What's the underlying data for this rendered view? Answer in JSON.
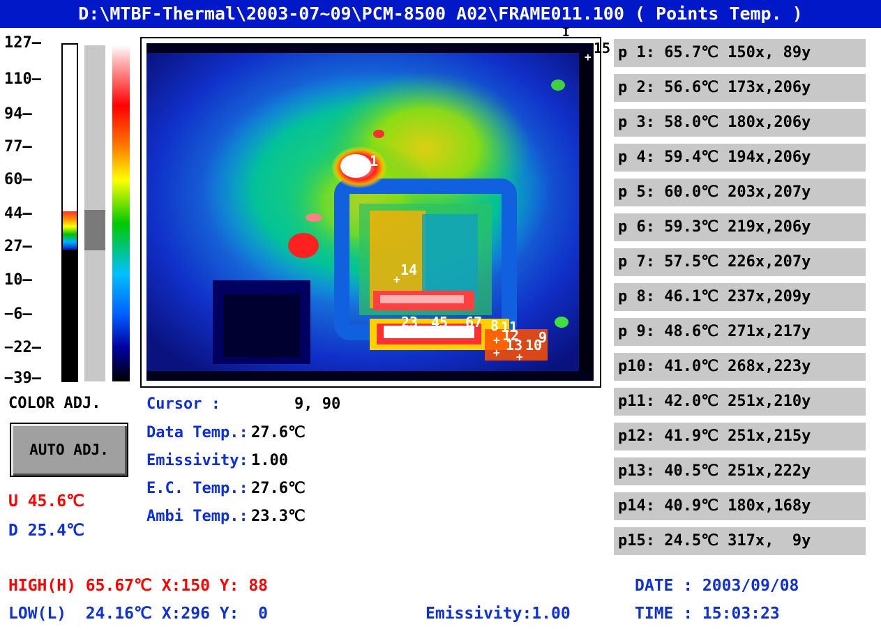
{
  "title": "D:\\MTBF-Thermal\\2003-07~09\\PCM-8500 A02\\FRAME011.100 ( Points Temp. )",
  "scale": [
    "127—",
    "110—",
    "94—",
    "77—",
    "60—",
    "44—",
    "27—",
    "10—",
    "−6—",
    "−22—",
    "−39—"
  ],
  "color_adj_label": "COLOR ADJ.",
  "auto_adj_label": "AUTO ADJ.",
  "upper_limit": "U 45.6℃",
  "lower_limit": "D 25.4℃",
  "info": {
    "cursor_label": "Cursor    :",
    "cursor_value": "9, 90",
    "data_temp_label": "Data Temp.:",
    "data_temp_value": "27.6℃",
    "emissivity_label": "Emissivity:",
    "emissivity_value": "1.00",
    "ec_temp_label": "E.C. Temp.:",
    "ec_temp_value": "27.6℃",
    "ambi_temp_label": "Ambi Temp.:",
    "ambi_temp_value": "23.3℃"
  },
  "points": [
    "p 1: 65.7℃ 150x, 89y",
    "p 2: 56.6℃ 173x,206y",
    "p 3: 58.0℃ 180x,206y",
    "p 4: 59.4℃ 194x,206y",
    "p 5: 60.0℃ 203x,207y",
    "p 6: 59.3℃ 219x,206y",
    "p 7: 57.5℃ 226x,207y",
    "p 8: 46.1℃ 237x,209y",
    "p 9: 48.6℃ 271x,217y",
    "p10: 41.0℃ 268x,223y",
    "p11: 42.0℃ 251x,210y",
    "p12: 41.9℃ 251x,215y",
    "p13: 40.5℃ 251x,222y",
    "p14: 40.9℃ 180x,168y",
    "p15: 24.5℃ 317x,  9y"
  ],
  "marker_labels": [
    "1",
    "14",
    "23",
    "45",
    "67",
    "8",
    "11",
    "12",
    "13",
    "10",
    "9",
    "15",
    "I"
  ],
  "footer": {
    "high": "HIGH(H) 65.67℃ X:150 Y: 88",
    "low": "LOW(L)  24.16℃ X:296 Y:  0",
    "emissivity": "Emissivity:1.00",
    "date": "DATE : 2003/09/08",
    "time": "TIME : 15:03:23"
  },
  "colors": {
    "title_bar": "#0018c8",
    "info_blue": "#1030d0",
    "alert_red": "#ff0000",
    "point_box": "#c8c8c8"
  }
}
